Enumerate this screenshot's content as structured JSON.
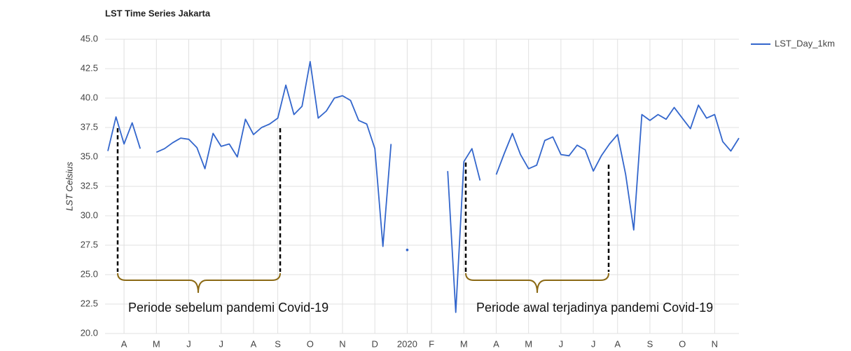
{
  "chart_data": {
    "type": "line",
    "title": "LST Time Series Jakarta",
    "y_label": "LST Celsius",
    "annotations": [
      "Periode sebelum pandemi Covid-19",
      "Periode awal terjadinya pandemi Covid-19"
    ],
    "categories": [
      null,
      null,
      "A",
      null,
      null,
      null,
      "M",
      null,
      null,
      null,
      "J",
      null,
      null,
      null,
      "J",
      null,
      null,
      null,
      "A",
      null,
      null,
      "S",
      null,
      null,
      null,
      "O",
      null,
      null,
      null,
      "N",
      null,
      null,
      null,
      "D",
      null,
      null,
      null,
      "2020",
      null,
      null,
      "F",
      null,
      null,
      null,
      "M",
      null,
      null,
      null,
      "A",
      null,
      null,
      null,
      "M",
      null,
      null,
      null,
      "J",
      null,
      null,
      null,
      "J",
      null,
      null,
      "A",
      null,
      null,
      null,
      "S",
      null,
      null,
      null,
      "O",
      null,
      null,
      null,
      "N",
      null,
      null,
      null
    ],
    "series": [
      {
        "name": "LST_Day_1km",
        "color": "#3366cc",
        "values": [
          35.5,
          38.4,
          36.1,
          37.9,
          35.7,
          null,
          35.4,
          35.7,
          36.2,
          36.6,
          36.5,
          35.8,
          34.0,
          37.0,
          35.9,
          36.1,
          35.0,
          38.2,
          36.9,
          37.5,
          37.8,
          38.3,
          41.1,
          38.6,
          39.3,
          43.1,
          38.3,
          38.9,
          40.0,
          40.2,
          39.8,
          38.1,
          37.8,
          35.7,
          27.4,
          36.1,
          null,
          27.1,
          null,
          null,
          null,
          null,
          33.8,
          21.8,
          34.6,
          35.7,
          33.0,
          null,
          33.5,
          35.3,
          37.0,
          35.2,
          34.0,
          34.3,
          36.4,
          36.7,
          35.2,
          35.1,
          36.0,
          35.6,
          33.8,
          35.1,
          36.1,
          36.9,
          33.5,
          28.8,
          38.6,
          38.1,
          38.6,
          38.2,
          39.2,
          38.3,
          37.4,
          39.4,
          38.3,
          38.6,
          36.3,
          35.5,
          36.6
        ]
      }
    ],
    "ylim": [
      20,
      45
    ],
    "yticks": [
      {
        "value": 20,
        "label": "20.0"
      },
      22.5,
      {
        "value": 25,
        "label": "25.0"
      },
      27.5,
      {
        "value": 30,
        "label": "30.0"
      },
      32.5,
      {
        "value": 35,
        "label": "35.0"
      },
      37.5,
      {
        "value": 40,
        "label": "40.0"
      },
      42.5,
      {
        "value": 45,
        "label": "45.0"
      }
    ],
    "grid": true,
    "legend": "top-right"
  }
}
